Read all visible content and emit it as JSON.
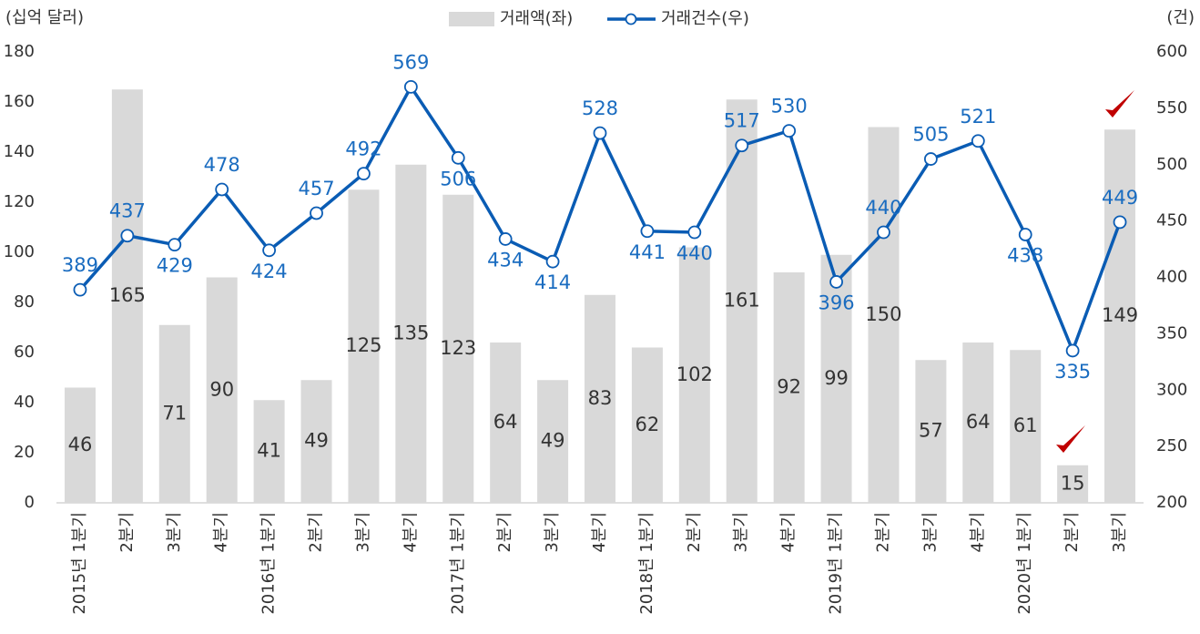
{
  "chart_data": {
    "type": "combo",
    "y_label": "(십억 달러)",
    "y2_label": "(건)",
    "categories": [
      "2015년 1분기",
      "2분기",
      "3분기",
      "4분기",
      "2016년 1분기",
      "2분기",
      "3분기",
      "4분기",
      "2017년 1분기",
      "2분기",
      "3분기",
      "4분기",
      "2018년 1분기",
      "2분기",
      "3분기",
      "4분기",
      "2019년 1분기",
      "2분기",
      "3분기",
      "4분기",
      "2020년 1분기",
      "2분기",
      "3분기"
    ],
    "series": [
      {
        "name": "거래액(좌)",
        "type": "bar",
        "color": "#d9d9d9",
        "values": [
          46,
          165,
          71,
          90,
          41,
          49,
          125,
          135,
          123,
          64,
          49,
          83,
          62,
          102,
          161,
          92,
          99,
          150,
          57,
          64,
          61,
          15,
          149
        ]
      },
      {
        "name": "거래건수(우)",
        "type": "line",
        "axis": "y2",
        "color": "#0a5cb4",
        "values": [
          389,
          437,
          429,
          478,
          424,
          457,
          492,
          569,
          506,
          434,
          414,
          528,
          441,
          440,
          517,
          530,
          396,
          440,
          505,
          521,
          438,
          335,
          449
        ]
      }
    ],
    "ylim": [
      0,
      180
    ],
    "yticks": [
      0,
      20,
      40,
      60,
      80,
      100,
      120,
      140,
      160,
      180
    ],
    "y2lim": [
      200,
      600
    ],
    "y2ticks": [
      200,
      250,
      300,
      350,
      400,
      450,
      500,
      550,
      600
    ]
  }
}
